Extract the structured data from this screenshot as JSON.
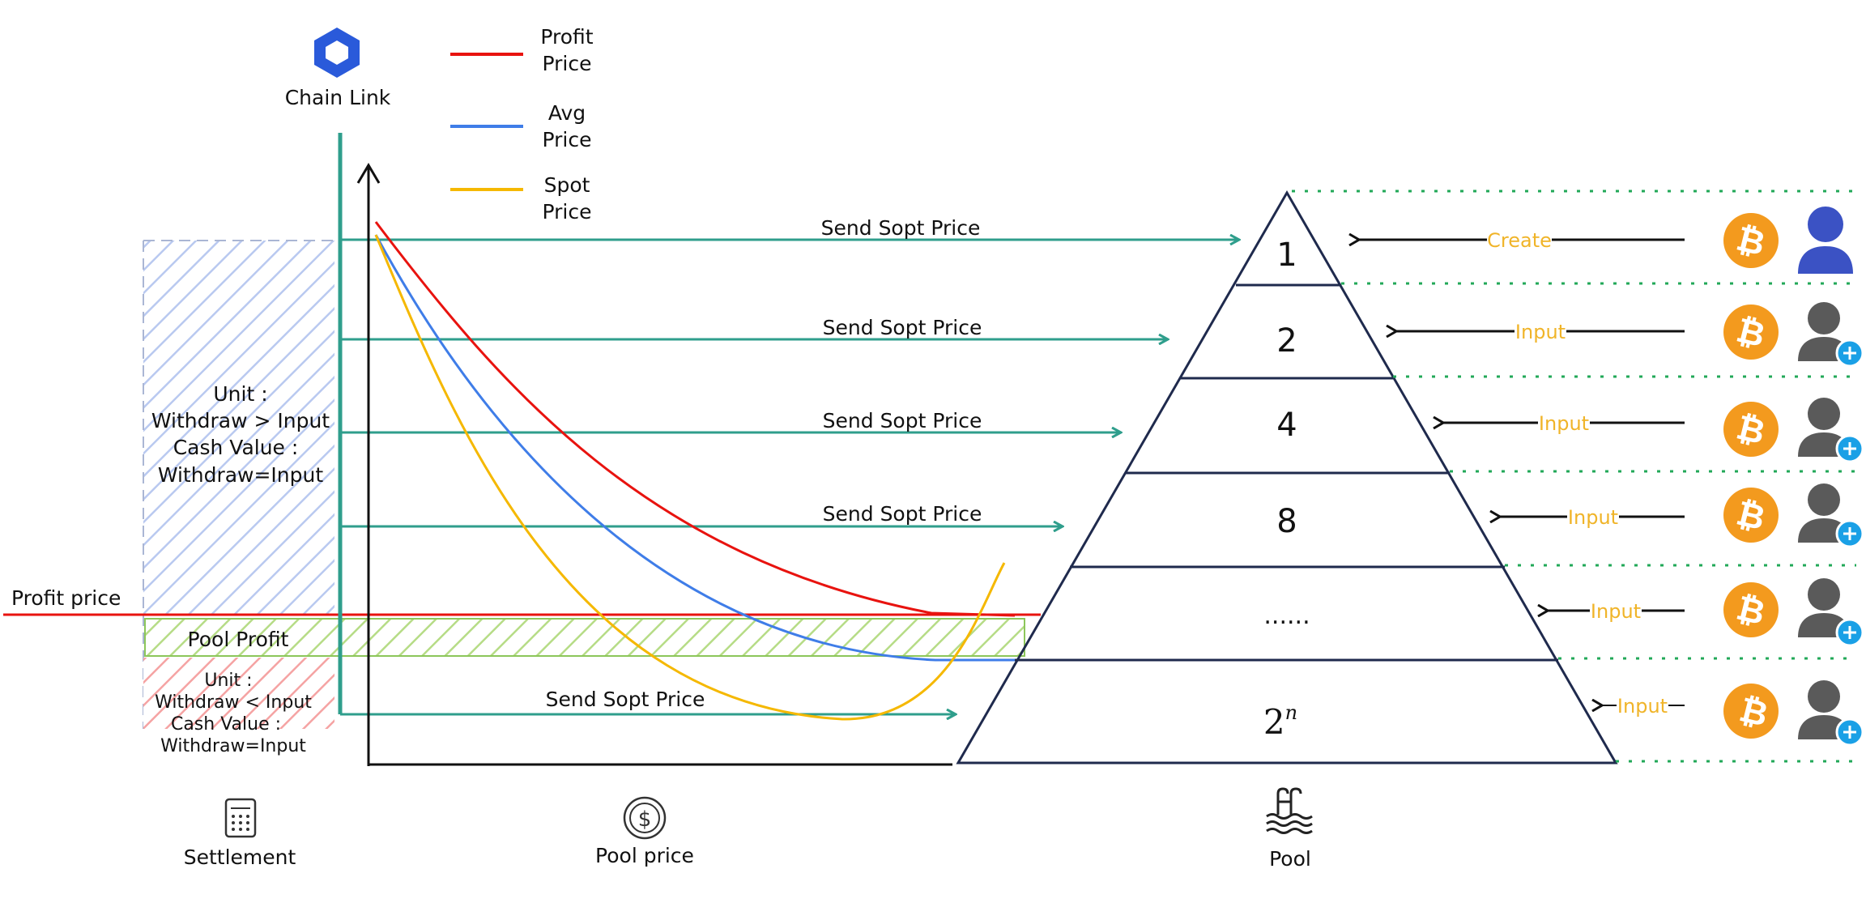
{
  "chainlink": {
    "label": "Chain Link"
  },
  "legend": [
    {
      "name": "Profit Price",
      "line1": "Profit",
      "line2": "Price",
      "color": "#e8130f"
    },
    {
      "name": "Avg Price",
      "line1": "Avg",
      "line2": "Price",
      "color": "#3f7de8"
    },
    {
      "name": "Spot Price",
      "line1": "Spot",
      "line2": "Price",
      "color": "#f5b800"
    }
  ],
  "colors": {
    "teal": "#2f9e8c",
    "profit": "#e8130f",
    "avg": "#3f7de8",
    "spot": "#f5b800",
    "pyramid": "#1f2a4d",
    "bitcoin": "#f39a1e",
    "user": "#3b52c4",
    "user_add": "#5a5a5a",
    "plus": "#1aa0e6",
    "dotted": "#22a858",
    "input_text": "#f0b429"
  },
  "arrows": {
    "send_label": "Send Sopt Price",
    "count": 5
  },
  "settlement": {
    "upper_zone": [
      "Unit :",
      "Withdraw > Input",
      "Cash Value :",
      "Withdraw=Input"
    ],
    "lower_zone": [
      "Unit :",
      "Withdraw < Input",
      "Cash Value :",
      "Withdraw=Input"
    ],
    "pool_profit": "Pool Profit",
    "profit_price": "Profit price"
  },
  "pyramid": {
    "tiers": [
      "1",
      "2",
      "4",
      "8",
      "......",
      "2"
    ],
    "last_exponent": "n"
  },
  "inputs": [
    {
      "label": "Create",
      "user": "owner"
    },
    {
      "label": "Input",
      "user": "add"
    },
    {
      "label": "Input",
      "user": "add"
    },
    {
      "label": "Input",
      "user": "add"
    },
    {
      "label": "Input",
      "user": "add"
    },
    {
      "label": "Input",
      "user": "add"
    }
  ],
  "bitcoin_glyph": "₿",
  "bottom": {
    "settlement": "Settlement",
    "pool_price": "Pool price",
    "pool": "Pool"
  },
  "icons": [
    "chainlink-icon",
    "calculator-icon",
    "dollar-coin-icon",
    "pool-icon",
    "bitcoin-icon",
    "user-icon",
    "user-add-icon"
  ]
}
